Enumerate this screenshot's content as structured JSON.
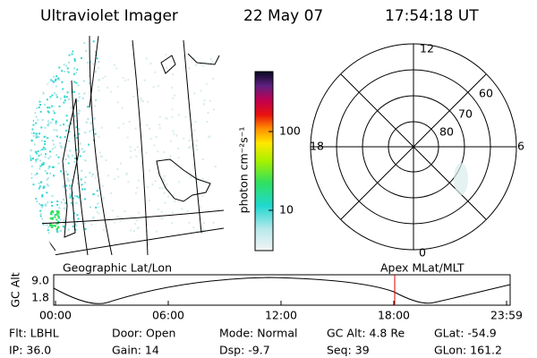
{
  "header": {
    "instrument": "Ultraviolet Imager",
    "date": "22 May 07",
    "time": "17:54:18 UT"
  },
  "colorbar": {
    "label": "photon cm⁻²s⁻¹",
    "ticks": [
      "100",
      "10"
    ]
  },
  "polar": {
    "labels": {
      "top": "12",
      "bottom": "0",
      "left": "18",
      "right": "6"
    },
    "latitudes": [
      "60",
      "70",
      "80"
    ]
  },
  "strip": {
    "left_title": "Geographic Lat/Lon",
    "right_title": "Apex  MLat/MLT",
    "y_label": "GC Alt",
    "y_ticks": [
      "9.0",
      "1.8"
    ],
    "x_ticks": [
      "00:00",
      "06:00",
      "12:00",
      "18:00",
      "23:59"
    ]
  },
  "info": {
    "rows": [
      [
        "Flt: LBHL",
        "Door: Open",
        "Mode: Normal",
        "GC Alt: 4.8 Re",
        "GLat: -54.9"
      ],
      [
        "IP: 36.0",
        "Gain: 14",
        "Dsp:   -9.7",
        "Seq: 39",
        "GLon: 161.2"
      ]
    ]
  }
}
